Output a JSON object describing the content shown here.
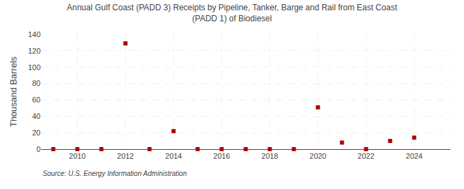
{
  "chart_data": {
    "type": "scatter",
    "title": "Annual Gulf Coast (PADD 3) Receipts by Pipeline, Tanker, Barge and Rail from East Coast\n(PADD 1) of Biodiesel",
    "ylabel": "Thousand Barrels",
    "annotations": [
      "Source: U.S. Energy Information Administration"
    ],
    "x": [
      2009,
      2010,
      2011,
      2012,
      2013,
      2014,
      2015,
      2016,
      2017,
      2018,
      2019,
      2020,
      2021,
      2022,
      2023,
      2024
    ],
    "values": [
      0,
      0,
      0,
      129,
      0,
      22,
      0,
      0,
      0,
      0,
      0,
      51,
      8,
      0,
      10,
      14
    ],
    "color": "#aa0000",
    "marker": "square",
    "xlim": [
      2008.5,
      2025.5
    ],
    "xticks": [
      2010,
      2012,
      2014,
      2016,
      2018,
      2020,
      2022,
      2024
    ],
    "ylim": [
      0,
      140
    ],
    "yticks": [
      0,
      20,
      40,
      60,
      80,
      100,
      120,
      140
    ],
    "grid": true
  }
}
